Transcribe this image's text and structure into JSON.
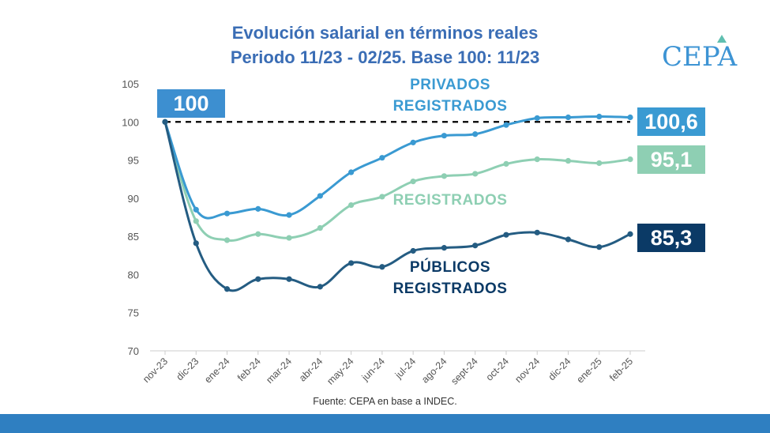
{
  "chart_data": {
    "type": "line",
    "title": "Evolución salarial en términos reales",
    "subtitle": "Periodo 11/23 - 02/25. Base 100: 11/23",
    "categories": [
      "nov-23",
      "dic-23",
      "ene-24",
      "feb-24",
      "mar-24",
      "abr-24",
      "may-24",
      "jun-24",
      "jul-24",
      "ago-24",
      "sept-24",
      "oct-24",
      "nov-24",
      "dic-24",
      "ene-25",
      "feb-25"
    ],
    "ylim": [
      70,
      105
    ],
    "yticks": [
      "70",
      "75",
      "80",
      "85",
      "90",
      "95",
      "100",
      "105"
    ],
    "grid": false,
    "reference_line": {
      "value": 100,
      "style": "dashed",
      "color": "#000000"
    },
    "start_badge": {
      "text": "100",
      "color": "#3d8fd0"
    },
    "series": [
      {
        "name": "PRIVADOS REGISTRADOS",
        "label_lines": [
          "PRIVADOS",
          "REGISTRADOS"
        ],
        "color": "#3a9ad2",
        "values": [
          100,
          88.5,
          88.0,
          88.6,
          87.8,
          90.3,
          93.4,
          95.3,
          97.3,
          98.2,
          98.4,
          99.6,
          100.5,
          100.6,
          100.7,
          100.6
        ],
        "end_badge": "100,6"
      },
      {
        "name": "REGISTRADOS",
        "label_lines": [
          "REGISTRADOS"
        ],
        "color": "#8ecfb3",
        "values": [
          100,
          87.0,
          84.5,
          85.3,
          84.8,
          86.1,
          89.1,
          90.2,
          92.2,
          92.9,
          93.2,
          94.5,
          95.1,
          94.9,
          94.6,
          95.1
        ],
        "end_badge": "95,1"
      },
      {
        "name": "PÚBLICOS REGISTRADOS",
        "label_lines": [
          "PÚBLICOS",
          "REGISTRADOS"
        ],
        "color": "#245c82",
        "badge_color": "#0b3a66",
        "values": [
          100,
          84.1,
          78.1,
          79.4,
          79.4,
          78.4,
          81.5,
          81.0,
          83.1,
          83.5,
          83.8,
          85.2,
          85.5,
          84.6,
          83.6,
          85.3
        ],
        "end_badge": "85,3"
      }
    ]
  },
  "logo": {
    "text": "CEPA"
  },
  "source": "Fuente: CEPA en base a INDEC.",
  "colors": {
    "title": "#3a6db5",
    "footer_bar": "#2f7fc1"
  }
}
